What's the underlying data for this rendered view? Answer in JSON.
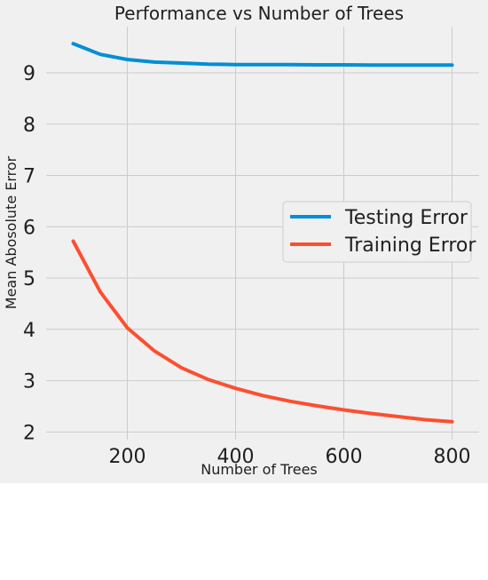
{
  "chart_data": {
    "type": "line",
    "title": "Performance vs Number of Trees",
    "xlabel": "Number of Trees",
    "ylabel": "Mean Abosolute Error",
    "xlim": [
      50,
      850
    ],
    "ylim": [
      1.85,
      9.9
    ],
    "xticks": [
      200,
      400,
      600,
      800
    ],
    "yticks": [
      2,
      3,
      4,
      5,
      6,
      7,
      8,
      9
    ],
    "grid": true,
    "legend_position": "right",
    "x": [
      100,
      150,
      200,
      250,
      300,
      350,
      400,
      450,
      500,
      550,
      600,
      650,
      700,
      750,
      800
    ],
    "series": [
      {
        "name": "Testing Error",
        "color": "#008fd5",
        "values": [
          9.57,
          9.36,
          9.26,
          9.21,
          9.19,
          9.17,
          9.16,
          9.16,
          9.16,
          9.155,
          9.155,
          9.15,
          9.15,
          9.15,
          9.15
        ]
      },
      {
        "name": "Training Error",
        "color": "#fc4f30",
        "values": [
          5.72,
          4.73,
          4.03,
          3.58,
          3.25,
          3.02,
          2.85,
          2.71,
          2.6,
          2.51,
          2.43,
          2.36,
          2.3,
          2.24,
          2.2
        ]
      }
    ]
  }
}
